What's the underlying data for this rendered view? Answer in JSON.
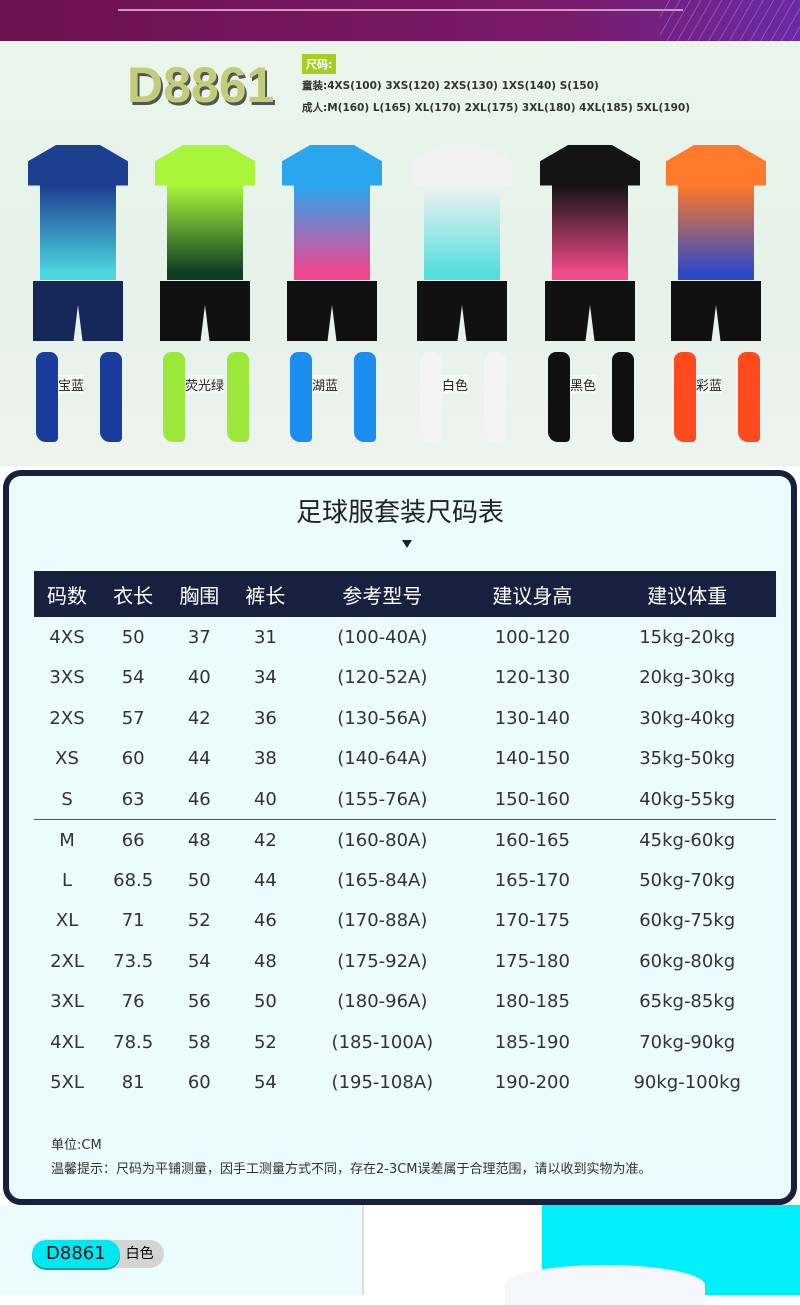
{
  "product": {
    "model": "D8861"
  },
  "sizes": {
    "tag": "尺码:",
    "kids": "童装:4XS(100)  3XS(120) 2XS(130) 1XS(140) S(150)",
    "adults": "成人:M(160)  L(165) XL(170) 2XL(175) 3XL(180) 4XL(185) 5XL(190)"
  },
  "kits": [
    {
      "label": "宝蓝",
      "top": "#1d3f8f",
      "bottom": "#4cd6e0",
      "shorts": "#16285a",
      "socks": "#1a3c9a"
    },
    {
      "label": "荧光绿",
      "top": "#a8f53a",
      "bottom": "#0e3d22",
      "shorts": "#111111",
      "socks": "#9be83a"
    },
    {
      "label": "湖蓝",
      "top": "#2aa6ee",
      "bottom": "#f0468f",
      "shorts": "#111111",
      "socks": "#1d8ef0"
    },
    {
      "label": "白色",
      "top": "#f2f2f2",
      "bottom": "#54dede",
      "shorts": "#111111",
      "socks": "#f4f4f4"
    },
    {
      "label": "黑色",
      "top": "#141414",
      "bottom": "#f04a8a",
      "shorts": "#111111",
      "socks": "#111111"
    },
    {
      "label": "彩蓝",
      "top": "#ff7a2a",
      "bottom": "#2b49c8",
      "shorts": "#111111",
      "socks": "#ff4a1e"
    }
  ],
  "size_chart": {
    "title": "足球服套装尺码表",
    "headers": [
      "码数",
      "衣长",
      "胸围",
      "裤长",
      "参考型号",
      "建议身高",
      "建议体重"
    ],
    "rows": [
      [
        "4XS",
        "50",
        "37",
        "31",
        "(100-40A)",
        "100-120",
        "15kg-20kg"
      ],
      [
        "3XS",
        "54",
        "40",
        "34",
        "(120-52A)",
        "120-130",
        "20kg-30kg"
      ],
      [
        "2XS",
        "57",
        "42",
        "36",
        "(130-56A)",
        "130-140",
        "30kg-40kg"
      ],
      [
        "XS",
        "60",
        "44",
        "38",
        "(140-64A)",
        "140-150",
        "35kg-50kg"
      ],
      [
        "S",
        "63",
        "46",
        "40",
        "(155-76A)",
        "150-160",
        "40kg-55kg"
      ],
      [
        "M",
        "66",
        "48",
        "42",
        "(160-80A)",
        "160-165",
        "45kg-60kg"
      ],
      [
        "L",
        "68.5",
        "50",
        "44",
        "(165-84A)",
        "165-170",
        "50kg-70kg"
      ],
      [
        "XL",
        "71",
        "52",
        "46",
        "(170-88A)",
        "170-175",
        "60kg-75kg"
      ],
      [
        "2XL",
        "73.5",
        "54",
        "48",
        "(175-92A)",
        "175-180",
        "60kg-80kg"
      ],
      [
        "3XL",
        "76",
        "56",
        "50",
        "(180-96A)",
        "180-185",
        "65kg-85kg"
      ],
      [
        "4XL",
        "78.5",
        "58",
        "52",
        "(185-100A)",
        "185-190",
        "70kg-90kg"
      ],
      [
        "5XL",
        "81",
        "60",
        "54",
        "(195-108A)",
        "190-200",
        "90kg-100kg"
      ]
    ],
    "unit": "单位:CM",
    "tip": "温馨提示：尺码为平铺测量，因手工测量方式不同，存在2-3CM误差属于合理范围，请以收到实物为准。"
  },
  "detail": {
    "model": "D8861",
    "color": "白色"
  }
}
